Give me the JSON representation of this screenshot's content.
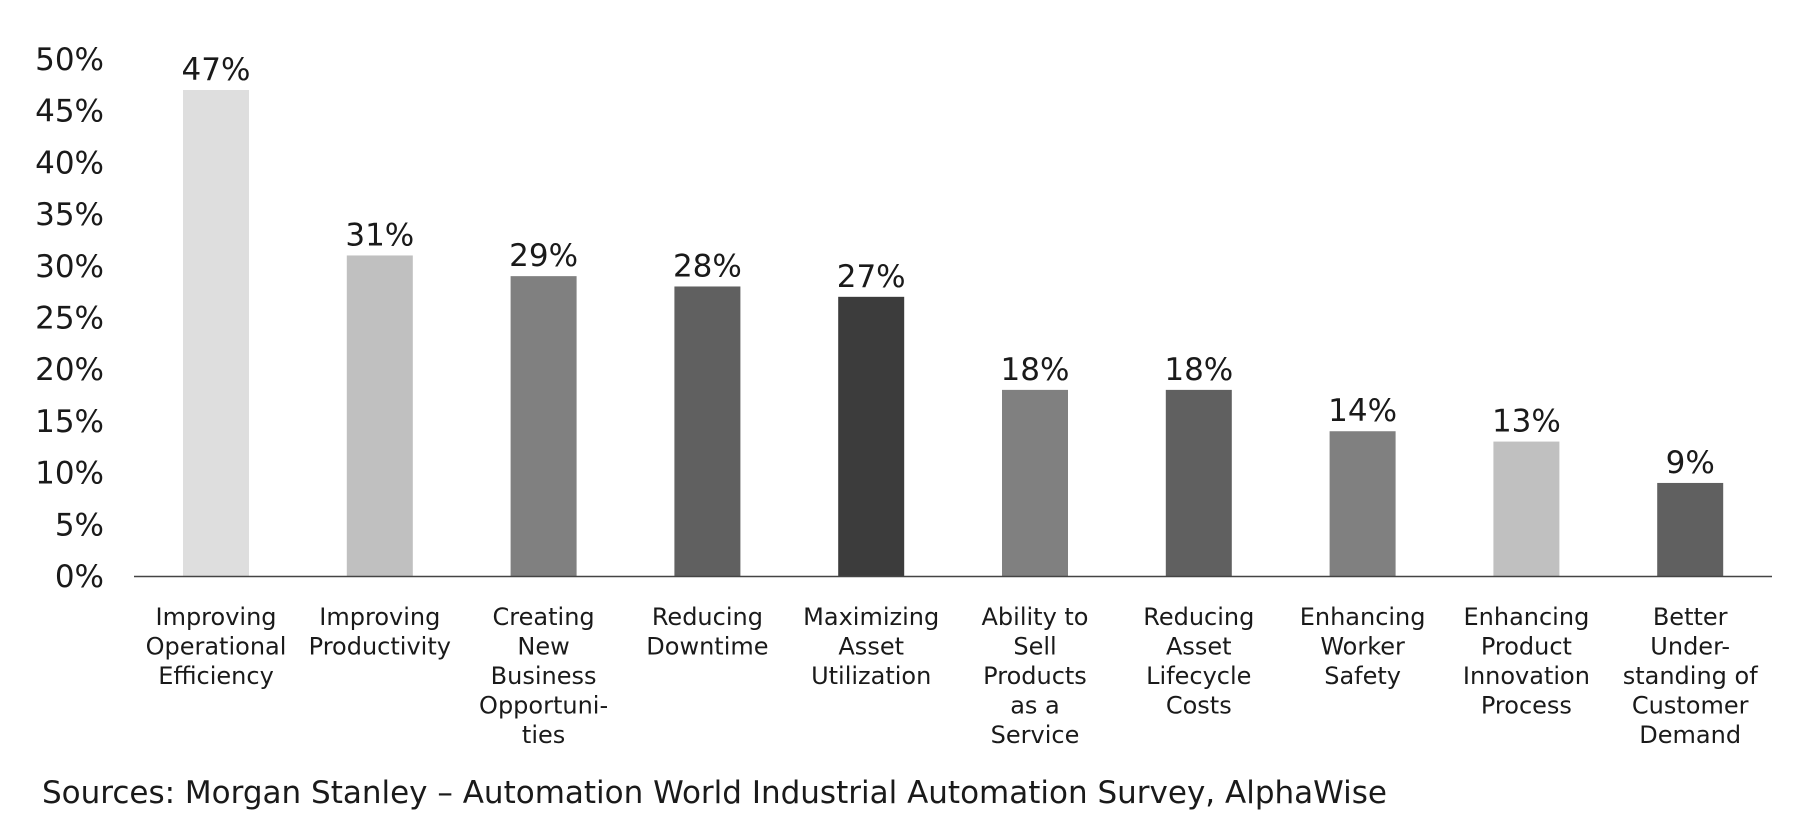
{
  "chart_data": {
    "type": "bar",
    "title": "",
    "xlabel": "",
    "ylabel": "",
    "ylim": [
      0,
      50
    ],
    "yticks": [
      0,
      5,
      10,
      15,
      20,
      25,
      30,
      35,
      40,
      45,
      50
    ],
    "ytick_labels": [
      "0%",
      "5%",
      "10%",
      "15%",
      "20%",
      "25%",
      "30%",
      "35%",
      "40%",
      "45%",
      "50%"
    ],
    "grid": false,
    "categories": [
      [
        "Improving",
        "Operational",
        "Efficiency"
      ],
      [
        "Improving",
        "Productivity"
      ],
      [
        "Creating",
        "New",
        "Business",
        "Opportuni-",
        "ties"
      ],
      [
        "Reducing",
        "Downtime"
      ],
      [
        "Maximizing",
        "Asset",
        "Utilization"
      ],
      [
        "Ability to",
        "Sell",
        "Products",
        "as a",
        "Service"
      ],
      [
        "Reducing",
        "Asset",
        "Lifecycle",
        "Costs"
      ],
      [
        "Enhancing",
        "Worker",
        "Safety"
      ],
      [
        "Enhancing",
        "Product",
        "Innovation",
        "Process"
      ],
      [
        "Better",
        "Under-",
        "standing of",
        "Customer",
        "Demand"
      ]
    ],
    "values": [
      47,
      31,
      29,
      28,
      27,
      18,
      18,
      14,
      13,
      9
    ],
    "value_labels": [
      "47%",
      "31%",
      "29%",
      "28%",
      "27%",
      "18%",
      "18%",
      "14%",
      "13%",
      "9%"
    ],
    "bar_colors": [
      "#dedede",
      "#c0c0c0",
      "#808080",
      "#606060",
      "#3c3c3c",
      "#808080",
      "#606060",
      "#808080",
      "#c0c0c0",
      "#606060"
    ]
  },
  "source_text": "Sources: Morgan Stanley – Automation World Industrial Automation Survey, AlphaWise"
}
